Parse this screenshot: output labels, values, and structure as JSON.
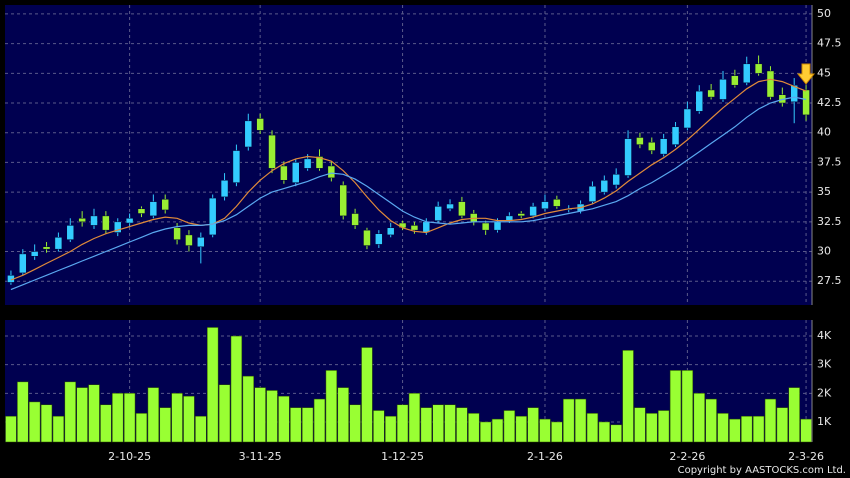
{
  "chart_data": [
    {
      "type": "candlestick",
      "categories": [
        null,
        null,
        null,
        null,
        null,
        null,
        null,
        null,
        null,
        null,
        "2-10-25",
        null,
        null,
        null,
        null,
        null,
        null,
        null,
        null,
        null,
        null,
        "3-11-25",
        null,
        null,
        null,
        null,
        null,
        null,
        null,
        null,
        null,
        null,
        null,
        "1-12-25",
        null,
        null,
        null,
        null,
        null,
        null,
        null,
        null,
        null,
        null,
        null,
        "2-1-26",
        null,
        null,
        null,
        null,
        null,
        null,
        null,
        null,
        null,
        null,
        null,
        "2-2-26",
        null,
        null,
        null,
        null,
        null,
        null,
        null,
        null,
        null,
        "2-3-26"
      ],
      "open": [
        27.4,
        28.2,
        29.6,
        30.4,
        30.2,
        31.0,
        32.8,
        32.2,
        33.0,
        31.6,
        32.4,
        33.6,
        33.0,
        34.4,
        32.0,
        31.4,
        30.4,
        31.4,
        34.6,
        35.8,
        38.8,
        41.2,
        39.8,
        37.2,
        35.8,
        37.0,
        38.0,
        37.2,
        35.6,
        33.2,
        31.8,
        30.6,
        31.4,
        32.4,
        32.2,
        31.6,
        32.6,
        33.6,
        34.2,
        33.2,
        32.4,
        31.8,
        32.6,
        33.2,
        33.0,
        33.6,
        34.4,
        33.6,
        33.4,
        34.2,
        35.0,
        35.6,
        36.4,
        39.6,
        39.2,
        38.2,
        39.0,
        40.4,
        41.8,
        43.6,
        42.8,
        44.8,
        44.2,
        45.8,
        45.2,
        43.2,
        42.6,
        43.6
      ],
      "high": [
        28.4,
        30.2,
        30.6,
        30.8,
        31.6,
        32.8,
        33.4,
        33.6,
        33.4,
        32.8,
        33.2,
        33.8,
        34.8,
        34.8,
        32.4,
        31.8,
        31.6,
        34.8,
        36.6,
        39.0,
        41.6,
        41.6,
        40.2,
        37.6,
        37.8,
        38.2,
        38.6,
        37.6,
        35.9,
        33.6,
        32.0,
        31.8,
        32.4,
        32.6,
        32.5,
        32.8,
        34.2,
        34.4,
        34.6,
        33.5,
        32.6,
        32.8,
        33.3,
        33.4,
        34.1,
        34.8,
        34.7,
        33.9,
        34.3,
        35.9,
        36.4,
        37.0,
        40.2,
        40.0,
        39.6,
        39.9,
        40.9,
        42.6,
        44.0,
        44.1,
        45.2,
        45.3,
        46.4,
        46.5,
        45.6,
        43.8,
        44.6,
        44.0
      ],
      "low": [
        27.2,
        28.0,
        29.3,
        29.9,
        30.0,
        30.8,
        32.1,
        31.9,
        31.5,
        31.3,
        32.1,
        32.9,
        32.8,
        33.2,
        30.6,
        30.0,
        29.0,
        31.2,
        34.3,
        35.5,
        38.5,
        39.9,
        36.6,
        35.7,
        35.5,
        36.8,
        36.8,
        35.9,
        32.7,
        31.9,
        30.2,
        30.3,
        31.2,
        31.8,
        31.5,
        31.4,
        32.4,
        33.4,
        32.8,
        32.2,
        31.4,
        31.6,
        32.4,
        32.8,
        32.8,
        33.4,
        33.6,
        33.3,
        33.2,
        34.0,
        34.8,
        35.3,
        36.2,
        38.7,
        38.2,
        38.0,
        38.8,
        40.2,
        41.6,
        42.8,
        42.6,
        43.8,
        44.0,
        44.8,
        42.8,
        42.2,
        40.8,
        41.0
      ],
      "close": [
        28.0,
        29.8,
        30.0,
        30.2,
        31.2,
        32.2,
        32.5,
        33.0,
        31.8,
        32.5,
        32.8,
        33.2,
        34.2,
        33.5,
        31.0,
        30.5,
        31.2,
        34.5,
        36.0,
        38.5,
        41.0,
        40.2,
        37.0,
        36.0,
        37.5,
        37.8,
        37.0,
        36.2,
        33.0,
        32.2,
        30.5,
        31.5,
        32.0,
        32.0,
        31.8,
        32.5,
        33.8,
        34.0,
        33.0,
        32.5,
        31.8,
        32.5,
        33.0,
        33.0,
        33.8,
        34.2,
        33.8,
        33.6,
        34.0,
        35.5,
        36.0,
        36.5,
        39.5,
        39.0,
        38.5,
        39.5,
        40.5,
        42.0,
        43.5,
        43.0,
        44.5,
        44.0,
        45.8,
        45.0,
        43.0,
        42.5,
        44.0,
        41.5
      ],
      "up_color": "#33ccff",
      "down_color": "#99ee33",
      "series": [
        {
          "color": "#e08a3a",
          "values": [
            27.6,
            28.0,
            28.5,
            29.0,
            29.5,
            30.0,
            30.6,
            31.1,
            31.5,
            31.8,
            32.1,
            32.4,
            32.7,
            32.9,
            32.8,
            32.4,
            32.2,
            32.3,
            32.8,
            33.8,
            35.0,
            36.0,
            36.8,
            37.4,
            37.8,
            38.0,
            37.9,
            37.6,
            36.8,
            35.8,
            34.6,
            33.5,
            32.6,
            32.0,
            31.7,
            31.6,
            32.0,
            32.4,
            32.7,
            32.8,
            32.8,
            32.6,
            32.6,
            32.7,
            32.9,
            33.2,
            33.4,
            33.6,
            33.7,
            34.0,
            34.5,
            35.1,
            35.9,
            36.6,
            37.3,
            37.9,
            38.6,
            39.4,
            40.3,
            41.2,
            42.1,
            42.9,
            43.7,
            44.3,
            44.5,
            44.3,
            43.9,
            43.5
          ]
        },
        {
          "color": "#5aa8f0",
          "values": [
            26.8,
            27.2,
            27.6,
            28.0,
            28.4,
            28.8,
            29.2,
            29.6,
            30.0,
            30.4,
            30.8,
            31.2,
            31.6,
            31.9,
            32.1,
            32.2,
            32.2,
            32.3,
            32.6,
            33.1,
            33.8,
            34.5,
            35.0,
            35.3,
            35.6,
            35.9,
            36.3,
            36.6,
            36.5,
            36.1,
            35.5,
            34.8,
            34.1,
            33.4,
            32.9,
            32.5,
            32.4,
            32.3,
            32.4,
            32.5,
            32.5,
            32.5,
            32.5,
            32.5,
            32.6,
            32.8,
            33.0,
            33.2,
            33.4,
            33.6,
            33.9,
            34.2,
            34.7,
            35.3,
            35.8,
            36.4,
            37.0,
            37.7,
            38.4,
            39.1,
            39.8,
            40.5,
            41.3,
            42.0,
            42.5,
            42.8,
            43.0,
            42.8
          ]
        }
      ],
      "ylim": [
        25.5,
        50.75
      ],
      "yticks": [
        27.5,
        30,
        32.5,
        35,
        37.5,
        40,
        42.5,
        45,
        47.5,
        50
      ],
      "grid": true
    },
    {
      "type": "bar",
      "values": [
        1200,
        2400,
        1700,
        1600,
        1200,
        2400,
        2200,
        2300,
        1600,
        2000,
        2000,
        1300,
        2200,
        1500,
        2000,
        1900,
        1200,
        4300,
        2300,
        4000,
        2600,
        2200,
        2100,
        1900,
        1500,
        1500,
        1800,
        2800,
        2200,
        1600,
        3600,
        1400,
        1200,
        1600,
        2000,
        1500,
        1600,
        1600,
        1500,
        1300,
        1000,
        1100,
        1400,
        1200,
        1500,
        1100,
        1000,
        1800,
        1800,
        1300,
        1000,
        900,
        3500,
        1500,
        1300,
        1400,
        2800,
        2800,
        2000,
        1800,
        1300,
        1100,
        1200,
        1200,
        1800,
        1500,
        2200,
        1100
      ],
      "color": "#99ff33",
      "ylim": [
        300,
        4560
      ],
      "yticks": [
        {
          "value": 1000,
          "label": "1K"
        },
        {
          "value": 2000,
          "label": "2K"
        },
        {
          "value": 3000,
          "label": "3K"
        },
        {
          "value": 4000,
          "label": "4K"
        }
      ],
      "grid": true
    }
  ],
  "copyright": "Copyright by AASTOCKS.com Ltd."
}
